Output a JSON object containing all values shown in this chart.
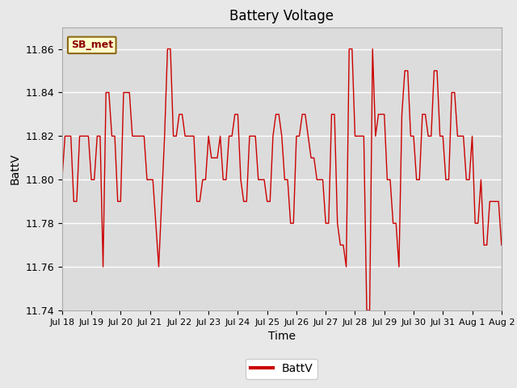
{
  "title": "Battery Voltage",
  "xlabel": "Time",
  "ylabel": "BattV",
  "legend_label": "BattV",
  "line_color": "#cc0000",
  "background_color": "#e8e8e8",
  "plot_bg_color": "#dcdcdc",
  "ylim": [
    11.74,
    11.87
  ],
  "yticks": [
    11.74,
    11.76,
    11.78,
    11.8,
    11.82,
    11.84,
    11.86
  ],
  "xtick_labels": [
    "Jul 18",
    "Jul 19",
    "Jul 20",
    "Jul 21",
    "Jul 22",
    "Jul 23",
    "Jul 24",
    "Jul 25",
    "Jul 26",
    "Jul 27",
    "Jul 28",
    "Jul 29",
    "Jul 30",
    "Jul 31",
    "Aug 1",
    "Aug 2"
  ],
  "annotation_text": "SB_met",
  "x": [
    0,
    0.1,
    0.2,
    0.3,
    0.4,
    0.5,
    0.6,
    0.7,
    0.8,
    0.9,
    1.0,
    1.1,
    1.2,
    1.3,
    1.4,
    1.5,
    1.6,
    1.7,
    1.8,
    1.9,
    2.0,
    2.1,
    2.2,
    2.3,
    2.4,
    2.5,
    2.6,
    2.7,
    2.8,
    2.9,
    3.0,
    3.1,
    3.2,
    3.3,
    3.4,
    3.5,
    3.6,
    3.7,
    3.8,
    3.9,
    4.0,
    4.1,
    4.2,
    4.3,
    4.4,
    4.5,
    4.6,
    4.7,
    4.8,
    4.9,
    5.0,
    5.1,
    5.2,
    5.3,
    5.4,
    5.5,
    5.6,
    5.7,
    5.8,
    5.9,
    6.0,
    6.1,
    6.2,
    6.3,
    6.4,
    6.5,
    6.6,
    6.7,
    6.8,
    6.9,
    7.0,
    7.1,
    7.2,
    7.3,
    7.4,
    7.5,
    7.6,
    7.7,
    7.8,
    7.9,
    8.0,
    8.1,
    8.2,
    8.3,
    8.4,
    8.5,
    8.6,
    8.7,
    8.8,
    8.9,
    9.0,
    9.1,
    9.2,
    9.3,
    9.4,
    9.5,
    9.6,
    9.7,
    9.8,
    9.9,
    10.0,
    10.1,
    10.2,
    10.3,
    10.4,
    10.5,
    10.6,
    10.7,
    10.8,
    10.9,
    11.0,
    11.1,
    11.2,
    11.3,
    11.4,
    11.5,
    11.6,
    11.7,
    11.8,
    11.9,
    12.0,
    12.1,
    12.2,
    12.3,
    12.4,
    12.5,
    12.6,
    12.7,
    12.8,
    12.9,
    13.0,
    13.1,
    13.2,
    13.3,
    13.4,
    13.5,
    13.6,
    13.7,
    13.8,
    13.9,
    14.0,
    14.1,
    14.2,
    14.3,
    14.4,
    14.5,
    14.6,
    14.7,
    14.8,
    14.9,
    15.0
  ],
  "y": [
    11.8,
    11.82,
    11.82,
    11.82,
    11.79,
    11.79,
    11.82,
    11.82,
    11.82,
    11.82,
    11.8,
    11.8,
    11.82,
    11.82,
    11.76,
    11.84,
    11.84,
    11.82,
    11.82,
    11.79,
    11.79,
    11.84,
    11.84,
    11.84,
    11.82,
    11.82,
    11.82,
    11.82,
    11.82,
    11.8,
    11.8,
    11.8,
    11.78,
    11.76,
    11.79,
    11.82,
    11.86,
    11.86,
    11.82,
    11.82,
    11.83,
    11.83,
    11.82,
    11.82,
    11.82,
    11.82,
    11.79,
    11.79,
    11.8,
    11.8,
    11.82,
    11.81,
    11.81,
    11.81,
    11.82,
    11.8,
    11.8,
    11.82,
    11.82,
    11.83,
    11.83,
    11.8,
    11.79,
    11.79,
    11.82,
    11.82,
    11.82,
    11.8,
    11.8,
    11.8,
    11.79,
    11.79,
    11.82,
    11.83,
    11.83,
    11.82,
    11.8,
    11.8,
    11.78,
    11.78,
    11.82,
    11.82,
    11.83,
    11.83,
    11.82,
    11.81,
    11.81,
    11.8,
    11.8,
    11.8,
    11.78,
    11.78,
    11.83,
    11.83,
    11.78,
    11.77,
    11.77,
    11.76,
    11.86,
    11.86,
    11.82,
    11.82,
    11.82,
    11.82,
    11.74,
    11.74,
    11.86,
    11.82,
    11.83,
    11.83,
    11.83,
    11.8,
    11.8,
    11.78,
    11.78,
    11.76,
    11.83,
    11.85,
    11.85,
    11.82,
    11.82,
    11.8,
    11.8,
    11.83,
    11.83,
    11.82,
    11.82,
    11.85,
    11.85,
    11.82,
    11.82,
    11.8,
    11.8,
    11.84,
    11.84,
    11.82,
    11.82,
    11.82,
    11.8,
    11.8,
    11.82,
    11.78,
    11.78,
    11.8,
    11.77,
    11.77,
    11.79,
    11.79,
    11.79,
    11.79,
    11.77
  ]
}
